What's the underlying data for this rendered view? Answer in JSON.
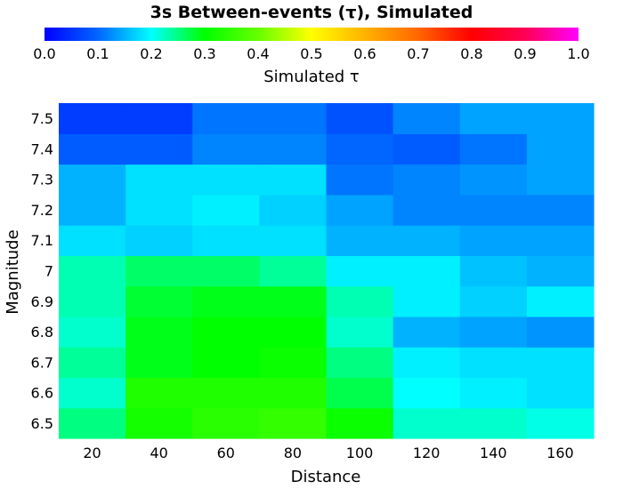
{
  "chart_data": {
    "type": "heatmap",
    "title": "3s Between-events (τ), Simulated",
    "xlabel": "Distance",
    "ylabel": "Magnitude",
    "colorbar_label": "Simulated τ",
    "colorbar_range": [
      0.0,
      1.0
    ],
    "colorbar_ticks": [
      "0.0",
      "0.1",
      "0.2",
      "0.3",
      "0.4",
      "0.5",
      "0.6",
      "0.7",
      "0.8",
      "0.9",
      "1.0"
    ],
    "x": [
      20,
      40,
      60,
      80,
      100,
      120,
      140,
      160
    ],
    "x_tick_labels": [
      "20",
      "40",
      "60",
      "80",
      "100",
      "120",
      "140",
      "160"
    ],
    "xlim": [
      10,
      170
    ],
    "y": [
      6.5,
      6.6,
      6.7,
      6.8,
      6.9,
      7.0,
      7.1,
      7.2,
      7.3,
      7.4,
      7.5
    ],
    "y_tick_labels": [
      "6.5",
      "6.6",
      "6.7",
      "6.8",
      "6.9",
      "7",
      "7.1",
      "7.2",
      "7.3",
      "7.4",
      "7.5"
    ],
    "ylim": [
      6.45,
      7.55
    ],
    "values": [
      [
        0.25,
        0.32,
        0.34,
        0.35,
        0.31,
        0.22,
        0.22,
        0.21
      ],
      [
        0.22,
        0.33,
        0.33,
        0.33,
        0.27,
        0.2,
        0.19,
        0.18
      ],
      [
        0.24,
        0.29,
        0.3,
        0.31,
        0.25,
        0.19,
        0.18,
        0.18
      ],
      [
        0.22,
        0.29,
        0.3,
        0.3,
        0.22,
        0.15,
        0.14,
        0.13
      ],
      [
        0.23,
        0.28,
        0.29,
        0.29,
        0.23,
        0.19,
        0.17,
        0.19
      ],
      [
        0.23,
        0.26,
        0.26,
        0.24,
        0.19,
        0.19,
        0.16,
        0.15
      ],
      [
        0.18,
        0.17,
        0.18,
        0.18,
        0.15,
        0.15,
        0.14,
        0.14
      ],
      [
        0.15,
        0.18,
        0.19,
        0.17,
        0.14,
        0.12,
        0.12,
        0.12
      ],
      [
        0.15,
        0.18,
        0.18,
        0.18,
        0.11,
        0.12,
        0.13,
        0.14
      ],
      [
        0.09,
        0.09,
        0.12,
        0.12,
        0.1,
        0.09,
        0.11,
        0.14
      ],
      [
        0.06,
        0.06,
        0.11,
        0.11,
        0.08,
        0.12,
        0.14,
        0.14
      ]
    ]
  }
}
